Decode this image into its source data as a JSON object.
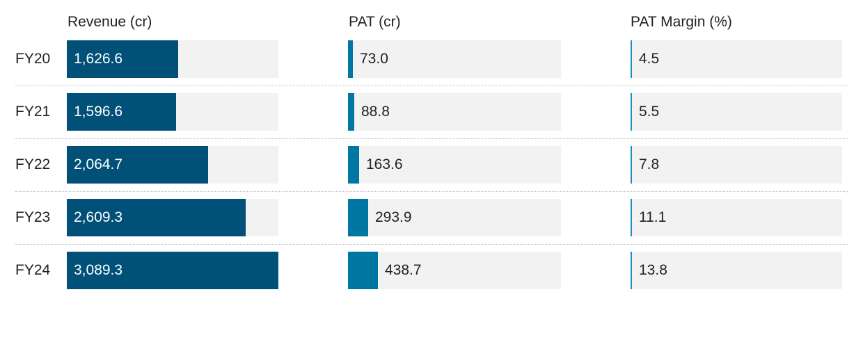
{
  "chart_data": {
    "type": "bar",
    "orientation": "horizontal",
    "categories": [
      "FY20",
      "FY21",
      "FY22",
      "FY23",
      "FY24"
    ],
    "series": [
      {
        "name": "Revenue (cr)",
        "values": [
          1626.6,
          1596.6,
          2064.7,
          2609.3,
          3089.3
        ],
        "labels": [
          "1,626.6",
          "1,596.6",
          "2,064.7",
          "2,609.3",
          "3,089.3"
        ],
        "color": "#005078",
        "max": 3089.3
      },
      {
        "name": "PAT (cr)",
        "values": [
          73.0,
          88.8,
          163.6,
          293.9,
          438.7
        ],
        "labels": [
          "73.0",
          "88.8",
          "163.6",
          "293.9",
          "438.7"
        ],
        "color": "#0077a3",
        "max": 3089.3
      },
      {
        "name": "PAT Margin (%)",
        "values": [
          4.5,
          5.5,
          7.8,
          11.1,
          13.8
        ],
        "labels": [
          "4.5",
          "5.5",
          "7.8",
          "11.1",
          "13.8"
        ],
        "color": "#1b8fc0",
        "max": null
      }
    ],
    "track_color": "#f2f2f2",
    "grid": false
  }
}
